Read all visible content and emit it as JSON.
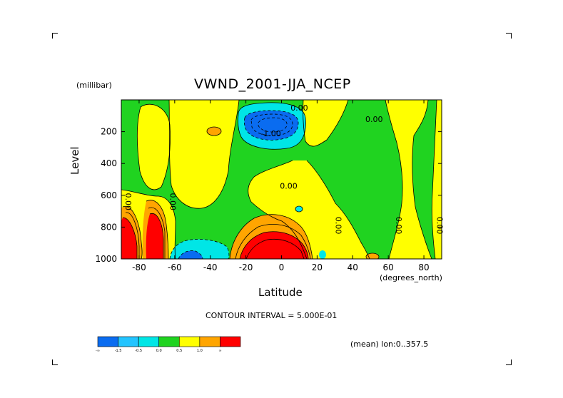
{
  "chart_data": {
    "type": "heatmap",
    "title": "VWND_2001-JJA_NCEP",
    "xlabel": "Latitude",
    "xunits": "(degrees_north)",
    "ylabel": "Level",
    "yunits": "(millibar)",
    "x_ticks": [
      "-80",
      "-60",
      "-40",
      "-20",
      "0",
      "20",
      "40",
      "60",
      "80"
    ],
    "x_tick_values": [
      -80,
      -60,
      -40,
      -20,
      0,
      20,
      40,
      60,
      80
    ],
    "y_ticks": [
      "200",
      "400",
      "600",
      "800",
      "1000"
    ],
    "y_tick_values": [
      200,
      400,
      600,
      800,
      1000
    ],
    "xlim": [
      -90,
      90
    ],
    "ylim": [
      1000,
      0
    ],
    "contour_interval_text": "CONTOUR INTERVAL = 5.000E-01",
    "mean_text": "(mean) lon:0..357.5",
    "colorbar": {
      "colors": [
        "#0a6cf0",
        "#23c4ff",
        "#00e6e6",
        "#20d320",
        "#ffff00",
        "#ffa500",
        "#ff0000"
      ],
      "labels": [
        "-∞",
        "-1.5",
        "-0.5",
        "0.0",
        "0.5",
        "1.0",
        "∞"
      ]
    },
    "contour_labels": [
      {
        "text": "0.00",
        "lat": 10,
        "lev": 50
      },
      {
        "text": "0.00",
        "lat": 52,
        "lev": 120
      },
      {
        "text": "-1.00",
        "lat": -6,
        "lev": 210
      },
      {
        "text": "0.00",
        "lat": 4,
        "lev": 540
      },
      {
        "text": "0.00",
        "lat": -86,
        "lev": 640
      },
      {
        "text": "0.00",
        "lat": -61,
        "lev": 640
      },
      {
        "text": "0.00",
        "lat": 32,
        "lev": 790
      },
      {
        "text": "0.00",
        "lat": 66,
        "lev": 790
      },
      {
        "text": "0.00",
        "lat": 89,
        "lev": 790
      }
    ]
  }
}
